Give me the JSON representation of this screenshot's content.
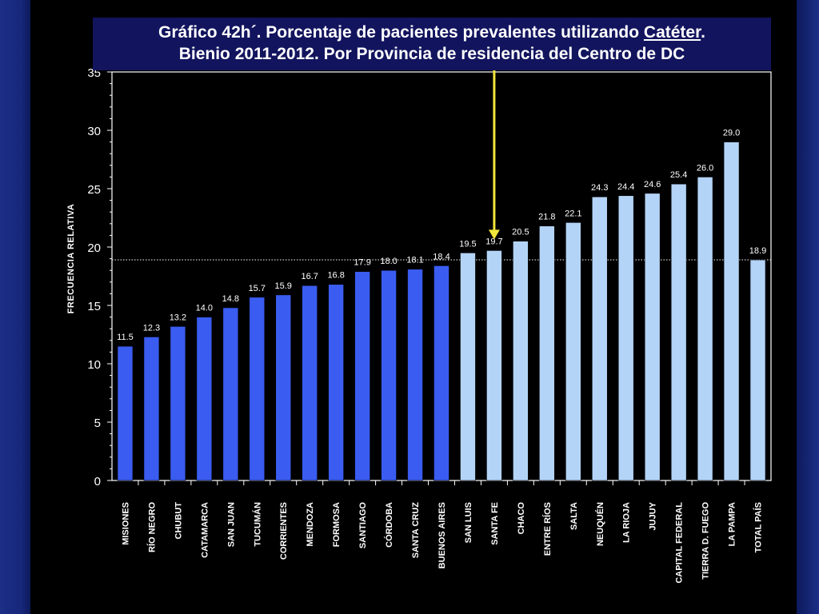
{
  "title": {
    "line1_pre": "Gráfico 42h´. Porcentaje de pacientes prevalentes utilizando ",
    "line1_underlined": "Catéter",
    "line1_post": ".",
    "line2": "Bienio 2011-2012. Por Provincia de residencia del Centro de DC"
  },
  "colors": {
    "bar_dark": "#3a5cf0",
    "bar_light": "#b4d4f7",
    "arrow": "#f2e63a",
    "reference_line": "#ffffff"
  },
  "chart_data": {
    "type": "bar",
    "ylabel": "FRECUENCIA RELATIVA",
    "ylim": [
      0,
      35
    ],
    "yticks": [
      0,
      5,
      10,
      15,
      20,
      25,
      30,
      35
    ],
    "reference_value": 18.9,
    "arrow_category": "SANTA FE",
    "categories": [
      "MISIONES",
      "RÍO NEGRO",
      "CHUBUT",
      "CATAMARCA",
      "SAN JUAN",
      "TUCUMÁN",
      "CORRIENTES",
      "MENDOZA",
      "FORMOSA",
      "SANTIAGO",
      "CÓRDOBA",
      "SANTA CRUZ",
      "BUENOS AIRES",
      "SAN LUIS",
      "SANTA FE",
      "CHACO",
      "ENTRE RÍOS",
      "SALTA",
      "NEUQUÉN",
      "LA RIOJA",
      "JUJUY",
      "CAPITAL FEDERAL",
      "TIERRA D. FUEGO",
      "LA PAMPA",
      "TOTAL PAÍS"
    ],
    "values": [
      11.5,
      12.3,
      13.2,
      14.0,
      14.8,
      15.7,
      15.9,
      16.7,
      16.8,
      17.9,
      18.0,
      18.1,
      18.4,
      19.5,
      19.7,
      20.5,
      21.8,
      22.1,
      24.3,
      24.4,
      24.6,
      25.4,
      26.0,
      29.0,
      18.9
    ],
    "value_labels": [
      "11.5",
      "12.3",
      "13.2",
      "14.0",
      "14.8",
      "15.7",
      "15.9",
      "16.7",
      "16.8",
      "17.9",
      "18.0",
      "18.1",
      "18.4",
      "19.5",
      "19.7",
      "20.5",
      "21.8",
      "22.1",
      "24.3",
      "24.4",
      "24.6",
      "25.4",
      "26.0",
      "29.0",
      "18.9"
    ],
    "bar_tone": [
      "dark",
      "dark",
      "dark",
      "dark",
      "dark",
      "dark",
      "dark",
      "dark",
      "dark",
      "dark",
      "dark",
      "dark",
      "dark",
      "light",
      "light",
      "light",
      "light",
      "light",
      "light",
      "light",
      "light",
      "light",
      "light",
      "light",
      "light"
    ],
    "grid": false,
    "legend": "none"
  }
}
